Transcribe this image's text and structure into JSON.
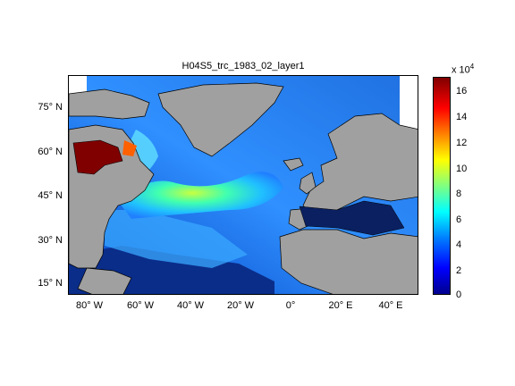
{
  "title": "H04S5_trc_1983_02_layer1",
  "map": {
    "region": "North Atlantic",
    "lon_range": [
      -90,
      50
    ],
    "lat_range": [
      10,
      85
    ],
    "land_color": "#a0a0a0",
    "colormap": "jet"
  },
  "y_ticks": [
    "75° N",
    "60° N",
    "45° N",
    "30° N",
    "15° N"
  ],
  "x_ticks": [
    "80° W",
    "60° W",
    "40° W",
    "20° W",
    "0°",
    "20° E",
    "40° E"
  ],
  "colorbar": {
    "exponent_label": "x 10",
    "exponent": "4",
    "ticks": [
      "16",
      "14",
      "12",
      "10",
      "8",
      "6",
      "4",
      "2",
      "0"
    ],
    "range": [
      0,
      17
    ]
  }
}
